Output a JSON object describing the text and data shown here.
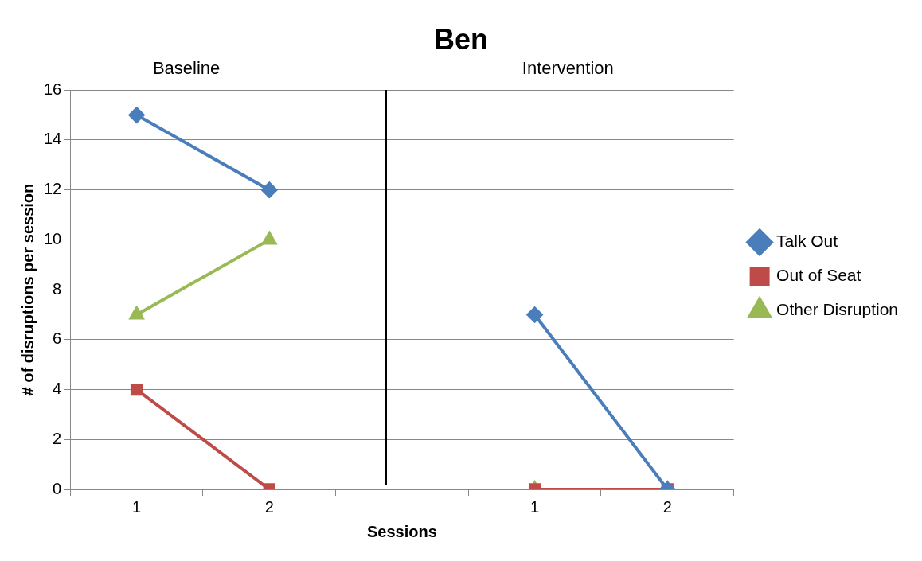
{
  "chart_data": {
    "type": "line",
    "title": "Ben",
    "xlabel": "Sessions",
    "ylabel": "# of disruptions per session",
    "categories": [
      "1",
      "2",
      null,
      "1",
      "2"
    ],
    "series": [
      {
        "name": "Talk Out",
        "color": "#4a7ebb",
        "marker": "diamond",
        "values": [
          15,
          12,
          null,
          7,
          0
        ]
      },
      {
        "name": "Out of Seat",
        "color": "#be4b48",
        "marker": "square",
        "values": [
          4,
          0,
          null,
          0,
          0
        ]
      },
      {
        "name": "Other Disruption",
        "color": "#98b954",
        "marker": "triangle",
        "values": [
          7,
          10,
          null,
          0,
          0
        ]
      }
    ],
    "annotations": [
      "Baseline",
      "Intervention"
    ],
    "ylim": [
      0,
      16
    ],
    "yticks": [
      0,
      2,
      4,
      6,
      8,
      10,
      12,
      14,
      16
    ],
    "grid": "y",
    "legend": "right",
    "line_style": "solid"
  }
}
